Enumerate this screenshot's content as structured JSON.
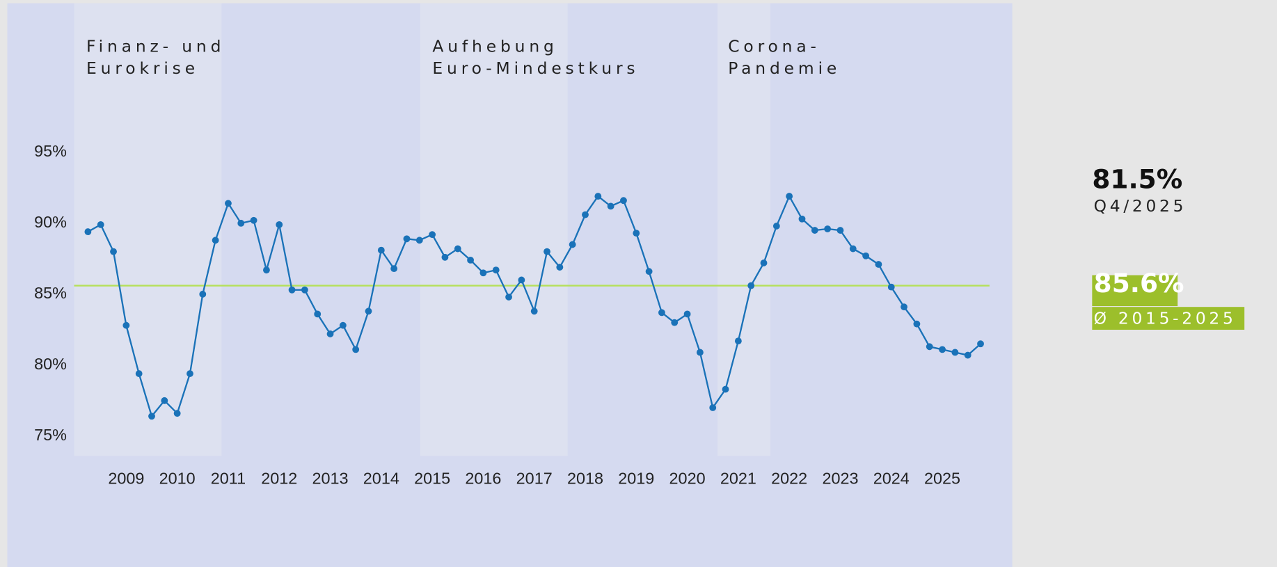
{
  "chart_data": {
    "type": "line",
    "annotations": [
      [
        "Finanz- und",
        "Eurokrise"
      ],
      [
        "Aufhebung",
        "Euro-Mindestkurs"
      ],
      [
        "Corona-",
        "Pandemie"
      ]
    ],
    "categories": [
      null,
      null,
      null,
      "2009",
      null,
      null,
      null,
      "2010",
      null,
      null,
      null,
      "2011",
      null,
      null,
      null,
      "2012",
      null,
      null,
      null,
      "2013",
      null,
      null,
      null,
      "2014",
      null,
      null,
      null,
      "2015",
      null,
      null,
      null,
      "2016",
      null,
      null,
      null,
      "2017",
      null,
      null,
      null,
      "2018",
      null,
      null,
      null,
      "2019",
      null,
      null,
      null,
      "2020",
      null,
      null,
      null,
      "2021",
      null,
      null,
      null,
      "2022",
      null,
      null,
      null,
      "2023",
      null,
      null,
      null,
      "2024",
      null,
      null,
      null,
      "2025",
      null,
      null,
      null
    ],
    "series": [
      {
        "color": "#1a72b8",
        "values": [
          89.4,
          89.9,
          88.0,
          82.8,
          79.4,
          76.4,
          77.5,
          76.6,
          79.4,
          85.0,
          88.8,
          91.4,
          90.0,
          90.2,
          86.7,
          89.9,
          85.3,
          85.3,
          83.6,
          82.2,
          82.8,
          81.1,
          83.8,
          88.1,
          86.8,
          88.9,
          88.8,
          89.2,
          87.6,
          88.2,
          87.4,
          86.5,
          86.7,
          84.8,
          86.0,
          83.8,
          88.0,
          86.9,
          88.5,
          90.6,
          91.9,
          91.2,
          91.6,
          89.3,
          86.6,
          83.7,
          83.0,
          83.6,
          80.9,
          77.0,
          78.3,
          81.7,
          85.6,
          87.2,
          89.8,
          91.9,
          90.3,
          89.5,
          89.6,
          89.5,
          88.2,
          87.7,
          87.1,
          85.5,
          84.1,
          82.9,
          81.3,
          81.1,
          80.9,
          80.7,
          81.5
        ]
      }
    ],
    "ylim": [
      73.6,
      105.5
    ],
    "yticks": [
      {
        "value": 75,
        "label": "75%"
      },
      {
        "value": 80,
        "label": "80%"
      },
      {
        "value": 85,
        "label": "85%"
      },
      {
        "value": 90,
        "label": "90%"
      },
      {
        "value": 95,
        "label": "95%"
      }
    ],
    "latest_label": "81.5%",
    "latest_period": "Q4/2025",
    "average": {
      "value": 85.6,
      "label": "85.6%",
      "period": "Ø 2015-2025",
      "color": "#b5e05a"
    }
  }
}
